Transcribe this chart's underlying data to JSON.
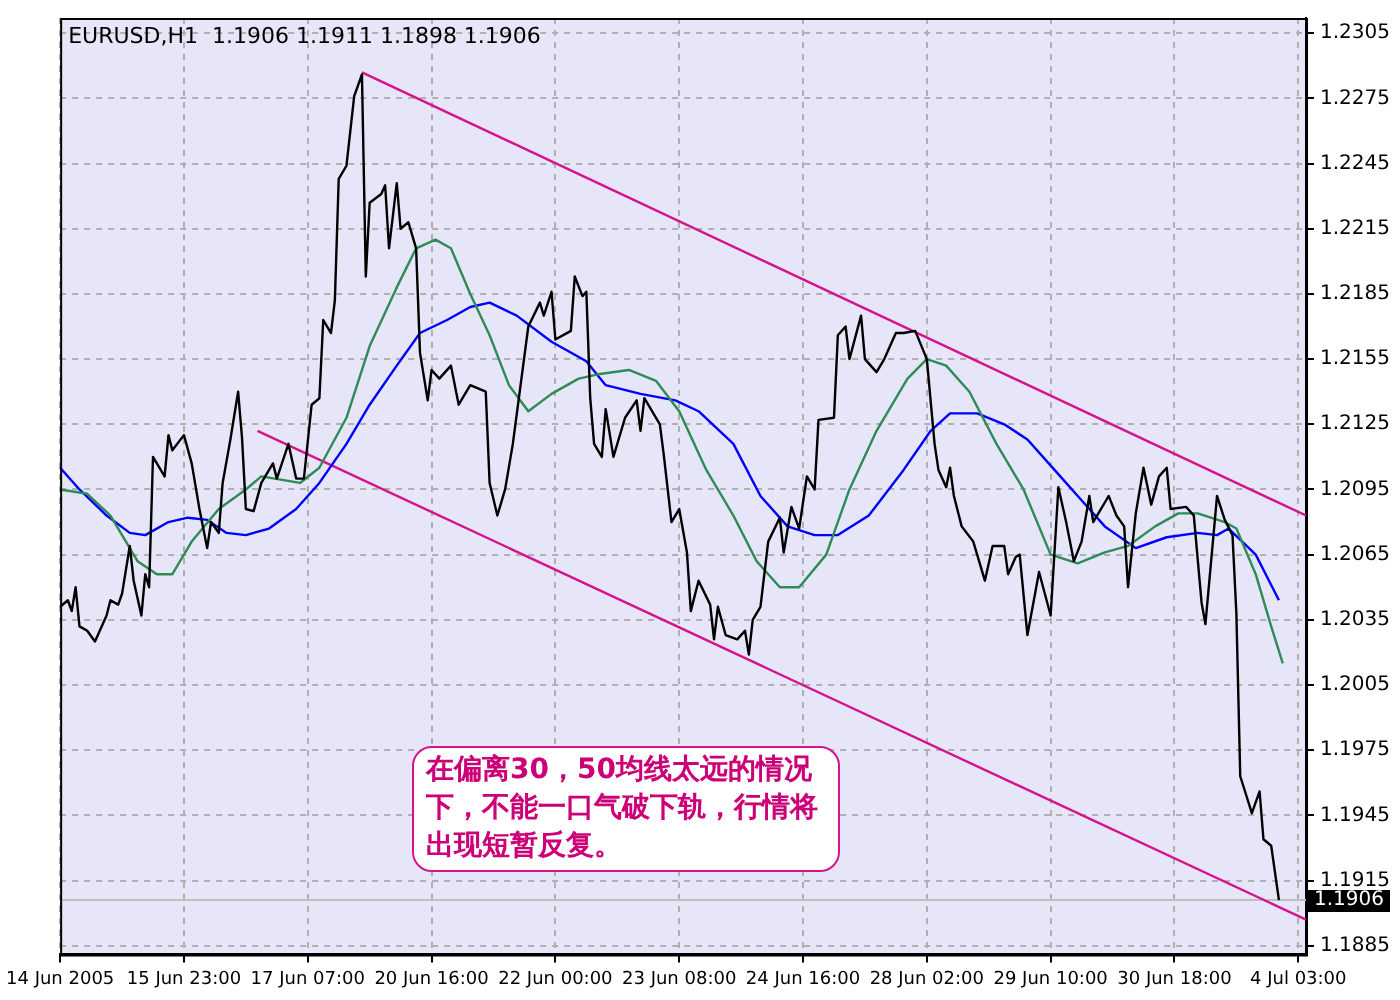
{
  "chart_data": {
    "type": "line",
    "title": "EURUSD,H1  1.1906 1.1911 1.1898 1.1906",
    "categories": [
      "14 Jun 2005",
      null,
      null,
      null,
      null,
      null,
      null,
      null,
      null,
      null,
      null,
      null,
      null,
      null,
      null,
      null,
      null,
      null,
      null,
      null,
      null,
      null,
      null,
      null,
      null,
      null,
      null,
      null,
      null,
      null,
      null,
      null,
      "15 Jun 23:00",
      null,
      null,
      null,
      null,
      null,
      null,
      null,
      null,
      null,
      null,
      null,
      null,
      null,
      null,
      null,
      null,
      null,
      null,
      null,
      null,
      null,
      null,
      null,
      null,
      null,
      null,
      null,
      null,
      null,
      null,
      null,
      "17 Jun 07:00",
      null,
      null,
      null,
      null,
      null,
      null,
      null,
      null,
      null,
      null,
      null,
      null,
      null,
      null,
      null,
      null,
      null,
      null,
      null,
      null,
      null,
      null,
      null,
      null,
      null,
      null,
      null,
      null,
      null,
      null,
      null,
      "20 Jun 16:00",
      null,
      null,
      null,
      null,
      null,
      null,
      null,
      null,
      null,
      null,
      null,
      null,
      null,
      null,
      null,
      null,
      null,
      null,
      null,
      null,
      null,
      null,
      null,
      null,
      null,
      null,
      null,
      null,
      null,
      null,
      null,
      "22 Jun 00:00",
      null,
      null,
      null,
      null,
      null,
      null,
      null,
      null,
      null,
      null,
      null,
      null,
      null,
      null,
      null,
      null,
      null,
      null,
      null,
      null,
      null,
      null,
      null,
      null,
      null,
      null,
      null,
      null,
      null,
      null,
      null,
      "23 Jun 08:00",
      null,
      null,
      null,
      null,
      null,
      null,
      null,
      null,
      null,
      null,
      null,
      null,
      null,
      null,
      null,
      null,
      null,
      null,
      null,
      null,
      null,
      null,
      null,
      null,
      null,
      null,
      null,
      null,
      null,
      null,
      null,
      "24 Jun 16:00",
      null,
      null,
      null,
      null,
      null,
      null,
      null,
      null,
      null,
      null,
      null,
      null,
      null,
      null,
      null,
      null,
      null,
      null,
      null,
      null,
      null,
      null,
      null,
      null,
      null,
      null,
      null,
      null,
      null,
      null,
      null,
      "28 Jun 02:00",
      null,
      null,
      null,
      null,
      null,
      null,
      null,
      null,
      null,
      null,
      null,
      null,
      null,
      null,
      null,
      null,
      null,
      null,
      null,
      null,
      null,
      null,
      null,
      null,
      null,
      null,
      null,
      null,
      null,
      null,
      null,
      "29 Jun 10:00",
      null,
      null,
      null,
      null,
      null,
      null,
      null,
      null,
      null,
      null,
      null,
      null,
      null,
      null,
      null,
      null,
      null,
      null,
      null,
      null,
      null,
      null,
      null,
      null,
      null,
      null,
      null,
      null,
      null,
      null,
      null,
      "30 Jun 18:00",
      null,
      null,
      null,
      null,
      null,
      null,
      null,
      null,
      null,
      null,
      null,
      null,
      null,
      null,
      null,
      null,
      null,
      null,
      null,
      null,
      null,
      null,
      null,
      null,
      null,
      null,
      null,
      null,
      null,
      null,
      null,
      "4 Jul 03:00",
      null,
      null
    ],
    "ylim": [
      1.1881,
      1.2312
    ],
    "yticks": [
      1.1885,
      1.1915,
      1.1945,
      1.1975,
      1.2005,
      1.2035,
      1.2065,
      1.2095,
      1.2125,
      1.2155,
      1.2185,
      1.2215,
      1.2245,
      1.2275,
      1.2305
    ],
    "grid": true,
    "legend": false,
    "marker": "none",
    "line_style": "solid",
    "series": [
      {
        "color": "#000000",
        "values": [
          1.2041,
          null,
          1.2044,
          1.2039,
          1.205,
          1.2032,
          null,
          1.203,
          null,
          1.2025,
          null,
          null,
          1.2037,
          1.2044,
          null,
          1.2042,
          1.2047,
          null,
          1.2069,
          1.2053,
          null,
          1.2037,
          1.2056,
          1.205,
          1.211,
          1.2107,
          null,
          1.2101,
          1.212,
          1.2113,
          null,
          null,
          1.212,
          null,
          1.2107,
          null,
          1.2086,
          null,
          1.2068,
          1.208,
          null,
          1.2075,
          1.2098,
          null,
          1.2118,
          null,
          1.214,
          1.2119,
          1.2086,
          null,
          1.2085,
          null,
          1.2098,
          null,
          null,
          1.2107,
          1.21,
          null,
          null,
          1.2116,
          null,
          1.21,
          null,
          1.21,
          null,
          1.2134,
          null,
          1.2137,
          1.2173,
          null,
          1.2167,
          1.2182,
          1.2238,
          null,
          1.2244,
          null,
          1.2276,
          null,
          1.2286,
          1.2193,
          1.2227,
          null,
          null,
          1.2231,
          1.2235,
          1.2206,
          null,
          1.2236,
          1.2215,
          null,
          1.2218,
          null,
          1.2206,
          1.2158,
          null,
          1.2136,
          1.215,
          null,
          1.2146,
          null,
          null,
          1.2152,
          null,
          1.2134,
          null,
          null,
          1.2143,
          null,
          null,
          null,
          1.214,
          1.2098,
          null,
          1.2083,
          null,
          1.2095,
          null,
          1.2116,
          null,
          null,
          null,
          1.217,
          null,
          null,
          1.2181,
          1.2175,
          null,
          1.2186,
          1.2164,
          null,
          null,
          null,
          1.2168,
          1.2193,
          null,
          1.2184,
          1.2186,
          1.2137,
          1.2116,
          null,
          1.211,
          1.2132,
          null,
          1.211,
          null,
          null,
          1.2128,
          null,
          null,
          1.2136,
          1.2122,
          1.2137,
          null,
          null,
          null,
          1.2125,
          1.2111,
          null,
          1.208,
          null,
          1.2086,
          null,
          1.2066,
          1.2039,
          null,
          1.2053,
          null,
          null,
          1.2042,
          1.2026,
          1.2041,
          null,
          1.2028,
          null,
          null,
          1.2026,
          null,
          1.203,
          1.2019,
          1.2035,
          null,
          1.2041,
          null,
          1.2071,
          null,
          null,
          1.2082,
          1.2066,
          null,
          1.2087,
          null,
          1.2077,
          null,
          1.2101,
          null,
          1.2095,
          1.2127,
          null,
          null,
          null,
          1.2128,
          1.2166,
          null,
          1.217,
          1.2155,
          null,
          null,
          1.2175,
          1.2155,
          null,
          null,
          1.2149,
          null,
          1.2155,
          null,
          null,
          1.2167,
          null,
          1.2167,
          null,
          null,
          1.2168,
          null,
          null,
          1.2155,
          null,
          1.2116,
          1.2104,
          null,
          1.2096,
          1.2105,
          1.2092,
          null,
          1.2078,
          null,
          null,
          1.2071,
          null,
          null,
          1.2053,
          null,
          1.2069,
          null,
          null,
          1.2069,
          1.2056,
          null,
          1.2064,
          1.2065,
          null,
          1.2028,
          null,
          null,
          1.2057,
          null,
          null,
          1.2037,
          null,
          1.2096,
          null,
          1.208,
          null,
          1.2062,
          null,
          1.2071,
          null,
          1.2092,
          1.208,
          null,
          null,
          1.2089,
          1.2092,
          null,
          1.2083,
          null,
          1.2078,
          1.205,
          null,
          1.2084,
          null,
          1.2105,
          null,
          1.2088,
          null,
          1.2101,
          null,
          1.2105,
          1.2086,
          null,
          null,
          null,
          1.2087,
          null,
          1.2083,
          null,
          1.2043,
          1.2033,
          null,
          null,
          1.2092,
          null,
          1.2081,
          null,
          1.2074,
          1.2038,
          1.1963,
          null,
          null,
          1.1946,
          null,
          1.1956,
          1.1934,
          null,
          1.1931,
          null,
          1.1906,
          null,
          null,
          null,
          null,
          null,
          null,
          null
        ]
      },
      {
        "color": "#2e8b57",
        "values": [
          1.2095,
          null,
          null,
          null,
          null,
          null,
          null,
          1.2093,
          null,
          null,
          null,
          null,
          null,
          1.2083,
          null,
          null,
          null,
          null,
          null,
          null,
          1.2062,
          null,
          null,
          null,
          null,
          1.2056,
          null,
          null,
          null,
          1.2056,
          null,
          null,
          null,
          null,
          1.2071,
          null,
          null,
          null,
          null,
          null,
          null,
          1.2086,
          null,
          null,
          null,
          null,
          null,
          null,
          1.2095,
          null,
          null,
          null,
          1.2101,
          null,
          null,
          null,
          null,
          null,
          null,
          null,
          null,
          null,
          1.2098,
          null,
          null,
          null,
          null,
          1.2105,
          null,
          null,
          null,
          null,
          null,
          null,
          1.2128,
          null,
          null,
          null,
          null,
          null,
          1.2161,
          null,
          null,
          null,
          null,
          null,
          null,
          1.2188,
          null,
          null,
          null,
          null,
          1.2206,
          null,
          null,
          null,
          null,
          1.221,
          null,
          null,
          null,
          1.2206,
          null,
          null,
          null,
          null,
          1.2185,
          null,
          null,
          null,
          null,
          1.2166,
          null,
          null,
          null,
          null,
          1.2143,
          null,
          null,
          null,
          null,
          1.2131,
          null,
          null,
          null,
          null,
          null,
          1.2139,
          null,
          null,
          null,
          null,
          null,
          null,
          1.2146,
          null,
          null,
          null,
          null,
          1.2148,
          null,
          null,
          null,
          null,
          null,
          null,
          null,
          1.215,
          null,
          null,
          null,
          null,
          null,
          null,
          1.2145,
          null,
          null,
          null,
          null,
          null,
          1.2131,
          null,
          null,
          null,
          null,
          null,
          null,
          1.2104,
          null,
          null,
          null,
          null,
          null,
          null,
          1.2083,
          null,
          null,
          null,
          null,
          null,
          1.2062,
          null,
          null,
          null,
          null,
          null,
          1.205,
          null,
          null,
          null,
          null,
          1.205,
          null,
          null,
          null,
          null,
          null,
          null,
          1.2065,
          null,
          null,
          null,
          null,
          null,
          1.2095,
          null,
          null,
          null,
          null,
          null,
          null,
          1.2122,
          null,
          null,
          null,
          null,
          null,
          null,
          null,
          1.2146,
          null,
          null,
          null,
          null,
          1.2155,
          null,
          null,
          null,
          null,
          1.2152,
          null,
          null,
          null,
          null,
          null,
          1.214,
          null,
          null,
          null,
          null,
          null,
          null,
          1.2116,
          null,
          null,
          null,
          null,
          null,
          null,
          1.2095,
          null,
          null,
          null,
          null,
          null,
          null,
          1.2065,
          null,
          null,
          null,
          null,
          null,
          null,
          1.2061,
          null,
          null,
          null,
          null,
          null,
          null,
          1.2066,
          null,
          null,
          null,
          null,
          null,
          1.2069,
          null,
          null,
          null,
          null,
          null,
          null,
          1.2078,
          null,
          null,
          null,
          null,
          null,
          1.2084,
          null,
          null,
          null,
          null,
          1.2084,
          null,
          null,
          null,
          null,
          null,
          null,
          1.208,
          null,
          null,
          1.2077,
          null,
          null,
          null,
          null,
          1.2056,
          null,
          null,
          null,
          1.2032,
          null,
          null,
          1.2015,
          null,
          null,
          null,
          null,
          null,
          null
        ]
      },
      {
        "color": "#0000ff",
        "values": [
          1.2105,
          null,
          null,
          null,
          null,
          1.2095,
          null,
          null,
          null,
          null,
          null,
          null,
          1.2083,
          null,
          null,
          null,
          null,
          null,
          1.2075,
          null,
          null,
          null,
          1.2074,
          null,
          null,
          null,
          null,
          null,
          1.208,
          null,
          null,
          null,
          null,
          1.2082,
          null,
          null,
          null,
          null,
          1.2081,
          null,
          null,
          null,
          null,
          1.2075,
          null,
          null,
          null,
          null,
          1.2074,
          null,
          null,
          null,
          null,
          null,
          1.2077,
          null,
          null,
          null,
          null,
          null,
          null,
          1.2086,
          null,
          null,
          null,
          null,
          null,
          1.2098,
          null,
          null,
          null,
          null,
          null,
          null,
          1.2116,
          null,
          null,
          null,
          null,
          null,
          1.2134,
          null,
          null,
          null,
          null,
          null,
          null,
          1.2152,
          null,
          null,
          null,
          null,
          null,
          1.2167,
          null,
          null,
          null,
          null,
          null,
          null,
          1.2173,
          null,
          null,
          null,
          null,
          null,
          1.2179,
          null,
          null,
          null,
          null,
          1.2181,
          null,
          null,
          null,
          null,
          null,
          null,
          1.2175,
          null,
          null,
          null,
          null,
          null,
          null,
          null,
          null,
          1.2163,
          null,
          null,
          null,
          null,
          null,
          null,
          null,
          null,
          1.2154,
          null,
          null,
          null,
          null,
          1.2143,
          null,
          null,
          null,
          null,
          null,
          null,
          null,
          null,
          1.2139,
          null,
          null,
          null,
          null,
          null,
          null,
          null,
          null,
          1.2136,
          null,
          null,
          null,
          null,
          null,
          1.2131,
          null,
          null,
          null,
          null,
          null,
          null,
          null,
          null,
          1.2116,
          null,
          null,
          null,
          null,
          null,
          null,
          1.2092,
          null,
          null,
          null,
          null,
          null,
          null,
          1.2078,
          null,
          null,
          null,
          null,
          null,
          null,
          1.2074,
          null,
          null,
          null,
          null,
          null,
          1.2074,
          null,
          null,
          null,
          null,
          null,
          null,
          null,
          1.2083,
          null,
          null,
          null,
          null,
          null,
          null,
          null,
          null,
          1.2104,
          null,
          null,
          null,
          null,
          null,
          null,
          1.2122,
          null,
          null,
          null,
          null,
          1.213,
          null,
          null,
          null,
          null,
          null,
          null,
          1.213,
          null,
          null,
          null,
          null,
          null,
          null,
          1.2125,
          null,
          null,
          null,
          null,
          null,
          1.2118,
          null,
          null,
          null,
          null,
          null,
          null,
          1.2104,
          null,
          null,
          null,
          null,
          null,
          1.2092,
          null,
          null,
          null,
          null,
          null,
          null,
          1.2078,
          null,
          null,
          null,
          null,
          null,
          null,
          null,
          1.2068,
          null,
          null,
          null,
          null,
          null,
          null,
          null,
          1.2073,
          null,
          null,
          null,
          null,
          null,
          null,
          null,
          1.2075,
          null,
          null,
          null,
          null,
          1.2074,
          null,
          null,
          1.2077,
          null,
          null,
          null,
          null,
          null,
          null,
          1.2065,
          null,
          null,
          null,
          null,
          null,
          1.2044,
          null,
          null,
          null,
          null,
          null,
          null,
          null
        ]
      },
      {
        "color": "#d4148c",
        "values": [
          null,
          null,
          null,
          null,
          null,
          null,
          null,
          null,
          null,
          null,
          null,
          null,
          null,
          null,
          null,
          null,
          null,
          null,
          null,
          null,
          null,
          null,
          null,
          null,
          null,
          null,
          null,
          null,
          null,
          null,
          null,
          null,
          null,
          null,
          null,
          null,
          null,
          null,
          null,
          null,
          null,
          null,
          null,
          null,
          null,
          null,
          null,
          null,
          null,
          null,
          null,
          null,
          null,
          null,
          null,
          null,
          null,
          null,
          null,
          null,
          null,
          null,
          null,
          null,
          null,
          null,
          null,
          null,
          null,
          null,
          null,
          null,
          null,
          null,
          null,
          null,
          null,
          null,
          1.2287,
          null,
          null,
          null,
          null,
          null,
          null,
          null,
          null,
          null,
          null,
          null,
          null,
          null,
          null,
          null,
          null,
          null,
          null,
          null,
          null,
          null,
          null,
          null,
          null,
          null,
          null,
          null,
          null,
          null,
          null,
          null,
          null,
          null,
          null,
          null,
          null,
          null,
          null,
          null,
          null,
          null,
          null,
          null,
          null,
          null,
          null,
          null,
          null,
          null,
          null,
          null,
          null,
          null,
          null,
          null,
          null,
          null,
          null,
          null,
          null,
          null,
          null,
          null,
          null,
          null,
          null,
          null,
          null,
          null,
          null,
          null,
          null,
          null,
          null,
          null,
          null,
          null,
          null,
          null,
          null,
          null,
          null,
          null,
          null,
          null,
          null,
          null,
          null,
          null,
          null,
          null,
          null,
          null,
          null,
          null,
          null,
          null,
          null,
          null,
          null,
          null,
          null,
          null,
          null,
          null,
          null,
          null,
          null,
          null,
          null,
          null,
          null,
          null,
          null,
          null,
          null,
          null,
          null,
          null,
          null,
          null,
          null,
          null,
          null,
          null,
          null,
          null,
          null,
          null,
          null,
          null,
          null,
          null,
          null,
          null,
          null,
          null,
          null,
          null,
          null,
          null,
          null,
          null,
          null,
          null,
          null,
          null,
          null,
          null,
          null,
          null,
          null,
          null,
          null,
          null,
          null,
          null,
          null,
          null,
          null,
          null,
          null,
          null,
          null,
          null,
          null,
          null,
          null,
          null,
          null,
          null,
          null,
          null,
          null,
          null,
          null,
          null,
          null,
          null,
          null,
          null,
          null,
          null,
          null,
          null,
          null,
          null,
          null,
          null,
          null,
          null,
          null,
          null,
          null,
          null,
          null,
          null,
          null,
          null,
          null,
          null,
          null,
          null,
          null,
          null,
          null,
          null,
          null,
          null,
          null,
          null,
          null,
          null,
          null,
          null,
          null,
          null,
          null,
          null,
          null,
          null,
          null,
          null,
          null,
          null,
          null,
          null,
          null,
          null,
          null,
          null,
          null,
          null,
          null,
          null,
          null,
          null,
          null,
          null,
          null,
          null,
          null,
          null,
          1.2083
        ]
      },
      {
        "color": "#d4148c",
        "values": [
          null,
          null,
          null,
          null,
          null,
          null,
          null,
          null,
          null,
          null,
          null,
          null,
          null,
          null,
          null,
          null,
          null,
          null,
          null,
          null,
          null,
          null,
          null,
          null,
          null,
          null,
          null,
          null,
          null,
          null,
          null,
          null,
          null,
          null,
          null,
          null,
          null,
          null,
          null,
          null,
          null,
          null,
          null,
          null,
          null,
          null,
          null,
          null,
          null,
          null,
          null,
          1.2122,
          null,
          null,
          null,
          null,
          null,
          null,
          null,
          null,
          null,
          null,
          null,
          null,
          null,
          null,
          null,
          null,
          null,
          null,
          null,
          null,
          null,
          null,
          null,
          null,
          null,
          null,
          null,
          null,
          null,
          null,
          null,
          null,
          null,
          null,
          null,
          null,
          null,
          null,
          null,
          null,
          null,
          null,
          null,
          null,
          null,
          null,
          null,
          null,
          null,
          null,
          null,
          null,
          null,
          null,
          null,
          null,
          null,
          null,
          null,
          null,
          null,
          null,
          null,
          null,
          null,
          null,
          null,
          null,
          null,
          null,
          null,
          null,
          null,
          null,
          null,
          null,
          null,
          null,
          null,
          null,
          null,
          null,
          null,
          null,
          null,
          null,
          null,
          null,
          null,
          null,
          null,
          null,
          null,
          null,
          null,
          null,
          null,
          null,
          null,
          null,
          null,
          null,
          null,
          null,
          null,
          null,
          null,
          null,
          null,
          null,
          null,
          null,
          null,
          null,
          null,
          null,
          null,
          null,
          null,
          null,
          null,
          null,
          null,
          null,
          null,
          null,
          null,
          null,
          null,
          null,
          null,
          null,
          null,
          null,
          null,
          null,
          null,
          null,
          null,
          null,
          null,
          null,
          null,
          null,
          null,
          null,
          null,
          null,
          null,
          null,
          null,
          null,
          null,
          null,
          null,
          null,
          null,
          null,
          null,
          null,
          null,
          null,
          null,
          null,
          null,
          null,
          null,
          null,
          null,
          null,
          null,
          null,
          null,
          null,
          null,
          null,
          null,
          null,
          null,
          null,
          null,
          null,
          null,
          null,
          null,
          null,
          null,
          null,
          null,
          null,
          null,
          null,
          null,
          null,
          null,
          null,
          null,
          null,
          null,
          null,
          null,
          null,
          null,
          null,
          null,
          null,
          null,
          null,
          null,
          null,
          null,
          null,
          null,
          null,
          null,
          null,
          null,
          null,
          null,
          null,
          null,
          null,
          null,
          null,
          null,
          null,
          null,
          null,
          null,
          null,
          null,
          null,
          null,
          null,
          null,
          null,
          null,
          null,
          null,
          null,
          null,
          null,
          null,
          null,
          null,
          null,
          null,
          null,
          null,
          null,
          null,
          null,
          null,
          null,
          null,
          null,
          null,
          null,
          null,
          null,
          null,
          null,
          null,
          null,
          null,
          null,
          null,
          null,
          null,
          null,
          1.1897
        ]
      }
    ],
    "ref_lines": [
      {
        "axis": "y",
        "value": 1.1906,
        "label": "1.1906",
        "color": "#c0c0c0"
      }
    ],
    "annotations": [
      "在偏离30，50均线太远的情况下，不能一口气破下轨，行情将出现短暂反复。"
    ]
  }
}
